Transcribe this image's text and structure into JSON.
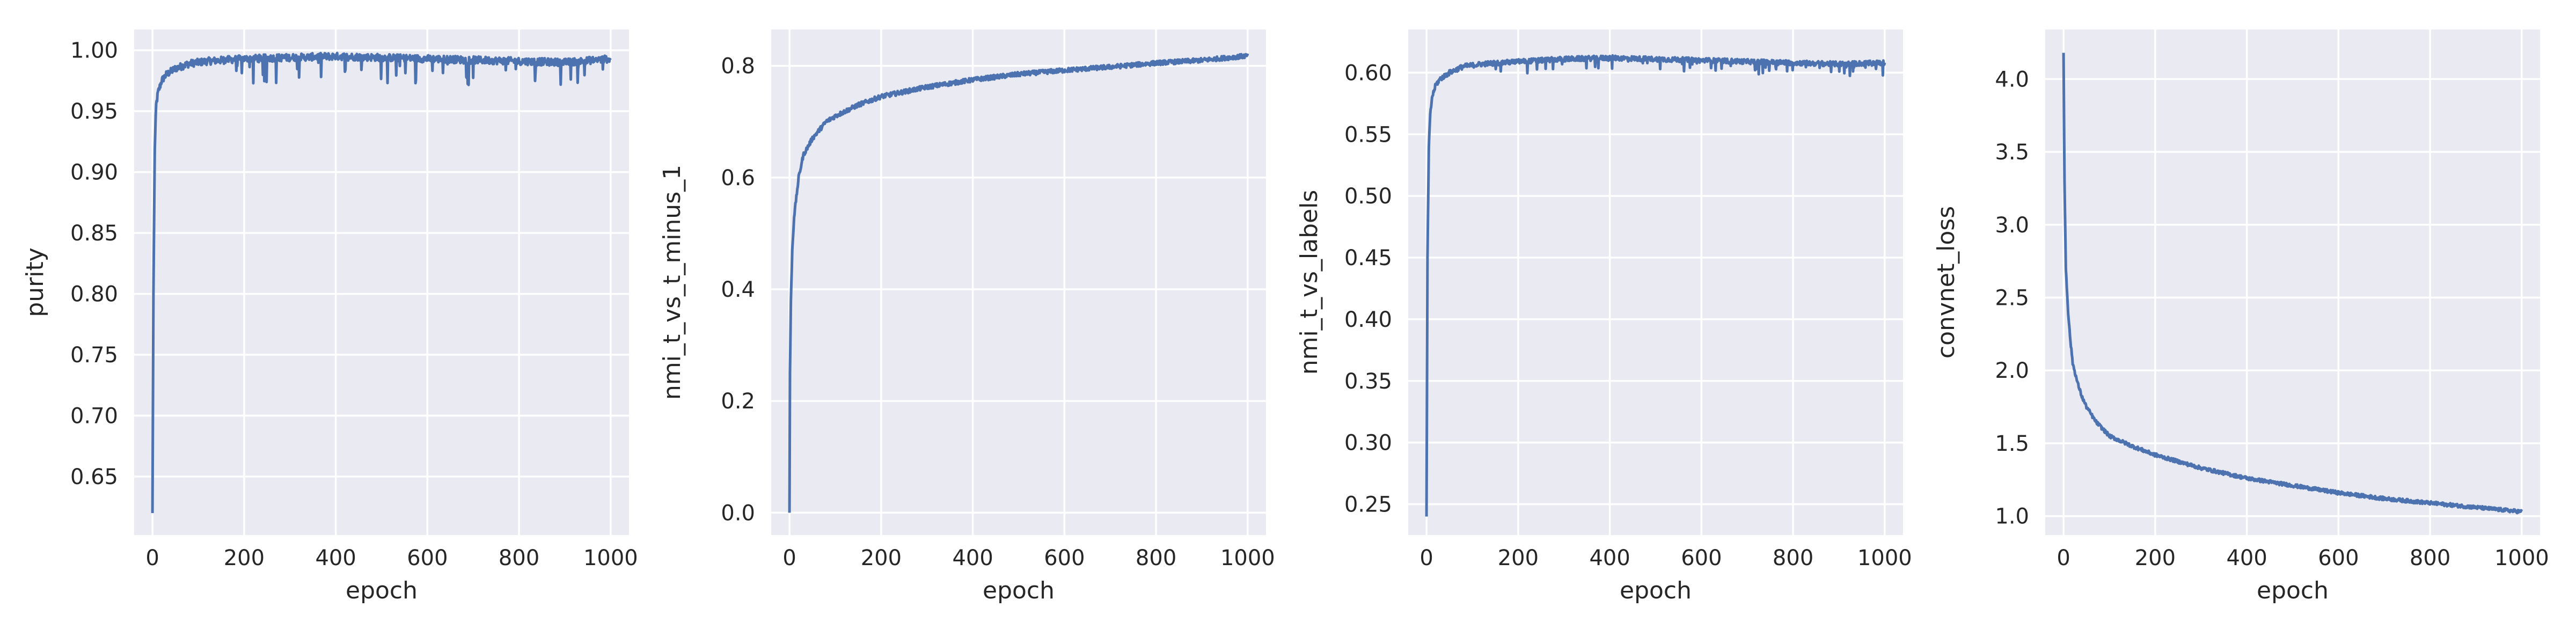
{
  "chart_data": [
    {
      "type": "line",
      "xlabel": "epoch",
      "ylabel": "purity",
      "xlim": [
        -40,
        1040
      ],
      "ylim": [
        0.602,
        1.017
      ],
      "xticks": [
        0,
        200,
        400,
        600,
        800,
        1000
      ],
      "yticks": [
        0.65,
        0.7,
        0.75,
        0.8,
        0.85,
        0.9,
        0.95,
        1.0
      ],
      "tick_decimals": 2,
      "grid": true,
      "color": "#4c72b0",
      "series": [
        {
          "x": [
            0,
            2,
            5,
            8,
            12,
            20,
            30,
            50,
            80,
            120,
            200,
            300,
            400,
            500,
            600,
            700,
            800,
            900,
            1000
          ],
          "y": [
            0.62,
            0.8,
            0.92,
            0.955,
            0.965,
            0.975,
            0.98,
            0.985,
            0.989,
            0.991,
            0.993,
            0.994,
            0.995,
            0.994,
            0.993,
            0.992,
            0.991,
            0.99,
            0.993
          ],
          "noise": 0.003,
          "spikes": 0.02
        }
      ]
    },
    {
      "type": "line",
      "xlabel": "epoch",
      "ylabel": "nmi_t_vs_t_minus_1",
      "xlim": [
        -40,
        1040
      ],
      "ylim": [
        -0.04,
        0.865
      ],
      "xticks": [
        0,
        200,
        400,
        600,
        800,
        1000
      ],
      "yticks": [
        0.0,
        0.2,
        0.4,
        0.6,
        0.8
      ],
      "tick_decimals": 1,
      "grid": true,
      "color": "#4c72b0",
      "series": [
        {
          "x": [
            0,
            1,
            3,
            6,
            10,
            20,
            30,
            50,
            80,
            100,
            150,
            200,
            300,
            400,
            500,
            600,
            700,
            800,
            900,
            1000
          ],
          "y": [
            0.0,
            0.25,
            0.38,
            0.47,
            0.53,
            0.6,
            0.64,
            0.67,
            0.7,
            0.71,
            0.73,
            0.745,
            0.762,
            0.775,
            0.785,
            0.792,
            0.798,
            0.805,
            0.81,
            0.818
          ],
          "noise": 0.004,
          "spikes": 0
        }
      ]
    },
    {
      "type": "line",
      "xlabel": "epoch",
      "ylabel": "nmi_t_vs_labels",
      "xlim": [
        -40,
        1040
      ],
      "ylim": [
        0.225,
        0.635
      ],
      "xticks": [
        0,
        200,
        400,
        600,
        800,
        1000
      ],
      "yticks": [
        0.25,
        0.3,
        0.35,
        0.4,
        0.45,
        0.5,
        0.55,
        0.6
      ],
      "tick_decimals": 2,
      "grid": true,
      "color": "#4c72b0",
      "series": [
        {
          "x": [
            0,
            2,
            5,
            8,
            12,
            20,
            30,
            50,
            80,
            120,
            200,
            300,
            400,
            500,
            600,
            700,
            800,
            900,
            1000
          ],
          "y": [
            0.24,
            0.45,
            0.54,
            0.565,
            0.58,
            0.59,
            0.595,
            0.6,
            0.605,
            0.607,
            0.609,
            0.611,
            0.612,
            0.611,
            0.61,
            0.609,
            0.608,
            0.607,
            0.608
          ],
          "noise": 0.002,
          "spikes": 0.01
        }
      ]
    },
    {
      "type": "line",
      "xlabel": "epoch",
      "ylabel": "convnet_loss",
      "xlim": [
        -40,
        1040
      ],
      "ylim": [
        0.87,
        4.34
      ],
      "xticks": [
        0,
        200,
        400,
        600,
        800,
        1000
      ],
      "yticks": [
        1.0,
        1.5,
        2.0,
        2.5,
        3.0,
        3.5,
        4.0
      ],
      "tick_decimals": 1,
      "grid": true,
      "color": "#4c72b0",
      "series": [
        {
          "x": [
            0,
            2,
            5,
            10,
            15,
            20,
            30,
            40,
            50,
            70,
            100,
            150,
            200,
            300,
            400,
            500,
            600,
            700,
            800,
            900,
            1000
          ],
          "y": [
            4.18,
            3.3,
            2.7,
            2.4,
            2.2,
            2.05,
            1.92,
            1.82,
            1.75,
            1.65,
            1.55,
            1.48,
            1.42,
            1.33,
            1.26,
            1.21,
            1.16,
            1.12,
            1.09,
            1.06,
            1.03
          ],
          "noise": 0.012,
          "spikes": 0
        }
      ]
    }
  ]
}
